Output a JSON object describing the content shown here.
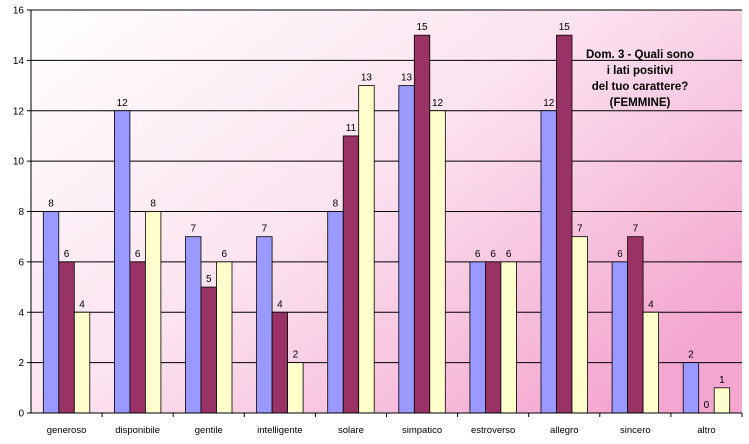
{
  "chart_data": {
    "type": "bar",
    "title_lines": [
      "Dom. 3 - Quali sono",
      "i lati positivi",
      "del tuo carattere?",
      "(FEMMINE)"
    ],
    "categories": [
      "generoso",
      "disponibile",
      "gentile",
      "intelligente",
      "solare",
      "simpatico",
      "estroverso",
      "allegro",
      "sincero",
      "altro"
    ],
    "series": [
      {
        "values": [
          8,
          12,
          7,
          7,
          8,
          13,
          6,
          12,
          6,
          2
        ],
        "color": "#9999ff"
      },
      {
        "values": [
          6,
          6,
          5,
          4,
          11,
          15,
          6,
          15,
          7,
          0
        ],
        "color": "#993366"
      },
      {
        "values": [
          4,
          8,
          6,
          2,
          13,
          12,
          6,
          7,
          4,
          1
        ],
        "color": "#ffffcc"
      }
    ],
    "ylim": [
      0,
      16
    ],
    "yticks": [
      0,
      2,
      4,
      6,
      8,
      10,
      12,
      14,
      16
    ],
    "grid": true,
    "legend": "none",
    "background_gradient": [
      "#ffffff",
      "#f3a6cf"
    ]
  }
}
